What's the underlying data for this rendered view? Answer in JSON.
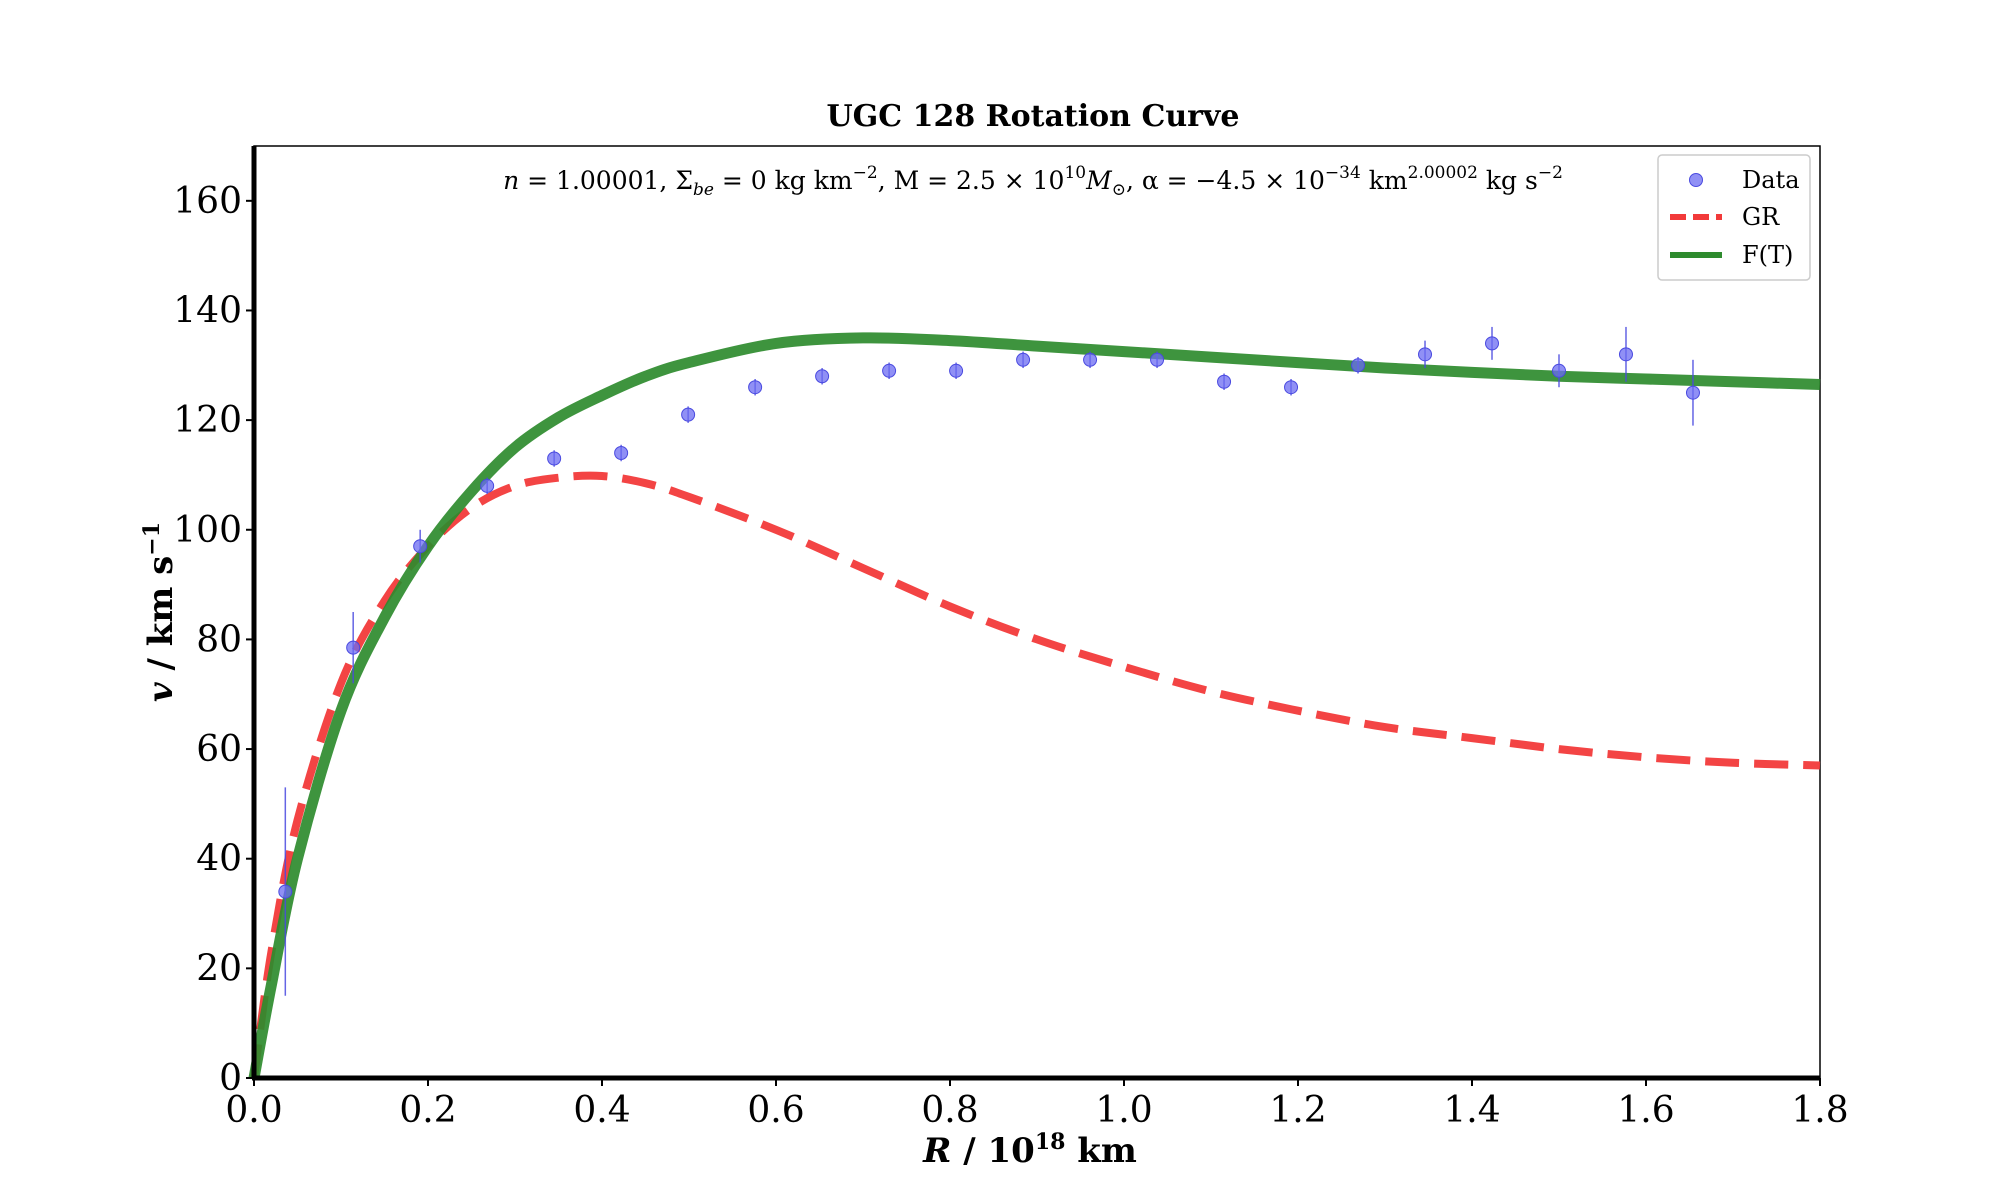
{
  "chart_data": {
    "type": "line",
    "title": "UGC 128 Rotation Curve",
    "xlabel": "R / 10^18 km",
    "xlabel_parts": {
      "var": "R",
      "sep": " / 10",
      "exp": "18",
      "unit": " km"
    },
    "ylabel": "v / km s^-1",
    "ylabel_parts": {
      "var": "v",
      "unit": " / km s",
      "exp": "−1"
    },
    "xlim": [
      0.0,
      1.8
    ],
    "ylim": [
      0,
      170
    ],
    "xticks": [
      "0.0",
      "0.2",
      "0.4",
      "0.6",
      "0.8",
      "1.0",
      "1.2",
      "1.4",
      "1.6",
      "1.8"
    ],
    "yticks": [
      "0",
      "20",
      "40",
      "60",
      "80",
      "100",
      "120",
      "140",
      "160"
    ],
    "grid": false,
    "legend_position": "top-right",
    "annotation": {
      "text": "n = 1.00001, Σbe = 0 kg km−2, M = 2.5 × 10^10 M⊙, α = −4.5 × 10^−34 km^2.00002 kg s−2",
      "n_label": "n",
      "n_value": " = 1.00001, ",
      "sigma_label": "Σ",
      "sigma_sub": "be",
      "sigma_value": " = 0 kg km",
      "sigma_exp": "−2",
      "m_label": ", M = 2.5 × 10",
      "m_exp": "10",
      "m_sym": "M",
      "m_sub": "⊙",
      "alpha_label": ", α = −4.5 × 10",
      "alpha_exp": "−34",
      "alpha_unit": " km",
      "alpha_unit_exp": "2.00002",
      "alpha_tail": " kg s",
      "alpha_tail_exp": "−2"
    },
    "legend": [
      {
        "name": "Data",
        "style": "marker",
        "color": "#6b6bf2"
      },
      {
        "name": "GR",
        "style": "dashed",
        "color": "#f23a3a"
      },
      {
        "name": "F(T)",
        "style": "solid",
        "color": "#2e8b2e"
      }
    ],
    "series": [
      {
        "name": "Data",
        "type": "scatter",
        "color": "#6b6bf2",
        "x": [
          0.036,
          0.114,
          0.191,
          0.268,
          0.345,
          0.422,
          0.499,
          0.576,
          0.653,
          0.73,
          0.807,
          0.884,
          0.961,
          1.038,
          1.115,
          1.192,
          1.269,
          1.346,
          1.423,
          1.5,
          1.577,
          1.654
        ],
        "y": [
          34.0,
          78.5,
          97.0,
          108.0,
          113.0,
          114.0,
          121.0,
          126.0,
          128.0,
          129.0,
          129.0,
          131.0,
          131.0,
          131.0,
          127.0,
          126.0,
          130.0,
          132.0,
          134.0,
          129.0,
          132.0,
          125.0
        ],
        "yerr": [
          19.0,
          6.5,
          3.0,
          1.5,
          1.5,
          1.5,
          1.5,
          1.5,
          1.5,
          1.5,
          1.5,
          1.5,
          1.5,
          1.5,
          1.5,
          1.5,
          1.5,
          2.5,
          3.0,
          3.0,
          5.0,
          6.0
        ]
      },
      {
        "name": "GR",
        "type": "line",
        "style": "dashed",
        "color": "#f23a3a",
        "x": [
          0.0,
          0.02,
          0.05,
          0.1,
          0.15,
          0.2,
          0.25,
          0.3,
          0.35,
          0.4,
          0.45,
          0.5,
          0.6,
          0.7,
          0.8,
          0.9,
          1.0,
          1.1,
          1.2,
          1.3,
          1.4,
          1.5,
          1.6,
          1.7,
          1.8
        ],
        "y": [
          0,
          23,
          47,
          72,
          87,
          97,
          104,
          108,
          109.5,
          109.8,
          108.5,
          106,
          100,
          93,
          86,
          80,
          75,
          70.5,
          67,
          64,
          62,
          60,
          58.5,
          57.5,
          57
        ]
      },
      {
        "name": "F(T)",
        "type": "line",
        "style": "solid",
        "color": "#2e8b2e",
        "x": [
          0.0,
          0.02,
          0.05,
          0.1,
          0.15,
          0.2,
          0.25,
          0.3,
          0.35,
          0.4,
          0.45,
          0.5,
          0.6,
          0.7,
          0.8,
          0.9,
          1.0,
          1.1,
          1.2,
          1.3,
          1.4,
          1.5,
          1.6,
          1.7,
          1.8
        ],
        "y": [
          0,
          17,
          40,
          67,
          84,
          97,
          107,
          115,
          120.5,
          124.5,
          128,
          130.5,
          134,
          135,
          134.5,
          133.5,
          132.5,
          131.5,
          130.5,
          129.5,
          128.7,
          128,
          127.5,
          127,
          126.5
        ]
      }
    ]
  }
}
